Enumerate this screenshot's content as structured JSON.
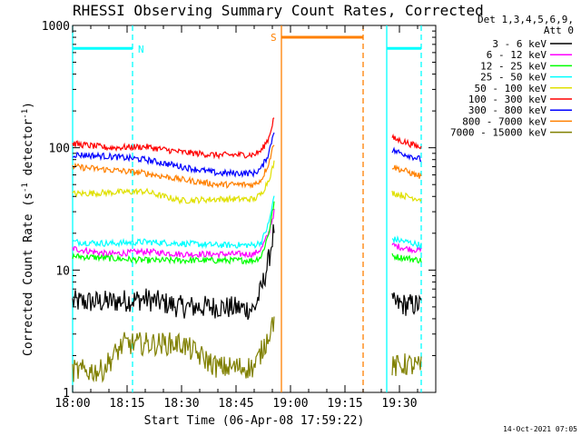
{
  "chart_data": {
    "type": "line",
    "title": "RHESSI Observing Summary Count Rates, Corrected",
    "xlabel": "Start Time (06-Apr-08 17:59:22)",
    "ylabel": "Corrected Count Rate (s",
    "ylabel_sup": "-1",
    "ylabel_tail": " detector",
    "ylabel_tail_sup": "-1",
    "ylabel_close": ")",
    "yscale": "log",
    "ylim": [
      1,
      1000
    ],
    "xlim_minutes": [
      0,
      100
    ],
    "x_ticks": [
      {
        "m": 0,
        "label": "18:00"
      },
      {
        "m": 15,
        "label": "18:15"
      },
      {
        "m": 30,
        "label": "18:30"
      },
      {
        "m": 45,
        "label": "18:45"
      },
      {
        "m": 60,
        "label": "19:00"
      },
      {
        "m": 75,
        "label": "19:15"
      },
      {
        "m": 90,
        "label": "19:30"
      }
    ],
    "y_ticks": [
      {
        "v": 1,
        "label": "1"
      },
      {
        "v": 10,
        "label": "10"
      },
      {
        "v": 100,
        "label": "100"
      },
      {
        "v": 1000,
        "label": "1000"
      }
    ],
    "legend_header": [
      "Det 1,3,4,5,6,9,",
      "Att 0"
    ],
    "legend_placement": "right",
    "series": [
      {
        "name": "3 - 6 keV",
        "color": "#000000",
        "segments": [
          {
            "x": [
              0,
              10,
              20,
              30,
              40,
              50,
              52,
              54,
              55.5
            ],
            "y": [
              5.5,
              5.5,
              5.8,
              5,
              5,
              4.8,
              7,
              12,
              22
            ]
          },
          {
            "x": [
              88,
              92,
              96
            ],
            "y": [
              5.3,
              5.2,
              5.2
            ]
          }
        ]
      },
      {
        "name": "6 - 12 keV",
        "color": "#ff00ff",
        "segments": [
          {
            "x": [
              0,
              10,
              20,
              30,
              40,
              50,
              52,
              54,
              55.5
            ],
            "y": [
              15,
              13.5,
              14.2,
              13.5,
              13.5,
              13.5,
              15,
              20,
              30
            ]
          },
          {
            "x": [
              88,
              92,
              96
            ],
            "y": [
              16,
              15,
              14.5
            ]
          }
        ]
      },
      {
        "name": "12 - 25 keV",
        "color": "#00ff00",
        "segments": [
          {
            "x": [
              0,
              10,
              20,
              30,
              40,
              50,
              52,
              54,
              55.5
            ],
            "y": [
              13,
              12.5,
              12,
              12,
              12,
              12,
              13,
              20,
              36
            ]
          },
          {
            "x": [
              88,
              92,
              96
            ],
            "y": [
              13,
              12.5,
              12
            ]
          }
        ]
      },
      {
        "name": "25 - 50 keV",
        "color": "#00ffff",
        "segments": [
          {
            "x": [
              0,
              10,
              20,
              30,
              40,
              50,
              52,
              54,
              55.5
            ],
            "y": [
              17,
              16.5,
              17,
              16.5,
              16,
              16,
              17,
              24,
              40
            ]
          },
          {
            "x": [
              88,
              92,
              96
            ],
            "y": [
              18,
              17,
              16
            ]
          }
        ]
      },
      {
        "name": "50 - 100 keV",
        "color": "#e0e000",
        "segments": [
          {
            "x": [
              0,
              10,
              20,
              25,
              30,
              40,
              50,
              52,
              54,
              55.5
            ],
            "y": [
              42,
              43,
              44,
              40,
              37,
              38,
              38,
              42,
              55,
              75
            ]
          },
          {
            "x": [
              88,
              92,
              96
            ],
            "y": [
              43,
              40,
              38
            ]
          }
        ]
      },
      {
        "name": "100 - 300 keV",
        "color": "#ff0000",
        "segments": [
          {
            "x": [
              0,
              10,
              20,
              30,
              40,
              50,
              52,
              54,
              55.5
            ],
            "y": [
              108,
              100,
              102,
              92,
              87,
              88,
              95,
              120,
              180
            ]
          },
          {
            "x": [
              88,
              92,
              96
            ],
            "y": [
              120,
              110,
              100
            ]
          }
        ]
      },
      {
        "name": "300 - 800 keV",
        "color": "#0000ff",
        "segments": [
          {
            "x": [
              0,
              10,
              20,
              30,
              40,
              50,
              52,
              54,
              55.5
            ],
            "y": [
              88,
              85,
              80,
              70,
              62,
              62,
              68,
              90,
              140
            ]
          },
          {
            "x": [
              88,
              92,
              96
            ],
            "y": [
              95,
              88,
              80
            ]
          }
        ]
      },
      {
        "name": "800 - 7000 keV",
        "color": "#ff8000",
        "segments": [
          {
            "x": [
              0,
              10,
              20,
              30,
              40,
              50,
              52,
              54,
              55.5
            ],
            "y": [
              70,
              66,
              62,
              55,
              50,
              50,
              55,
              75,
              110
            ]
          },
          {
            "x": [
              88,
              92,
              96
            ],
            "y": [
              70,
              64,
              58
            ]
          }
        ]
      },
      {
        "name": "7000 - 15000 keV",
        "color": "#808000",
        "segments": [
          {
            "x": [
              0,
              8,
              14,
              20,
              30,
              40,
              50,
              53,
              55.5
            ],
            "y": [
              1.5,
              1.5,
              2.5,
              2.5,
              2.5,
              1.6,
              1.6,
              2.5,
              4
            ]
          },
          {
            "x": [
              88,
              92,
              96
            ],
            "y": [
              1.6,
              1.7,
              1.6
            ]
          }
        ]
      }
    ],
    "annotations": {
      "night": {
        "label": "N",
        "color": "#00ffff",
        "bars": [
          {
            "x": [
              0,
              16.5
            ],
            "y": 650
          },
          {
            "x": [
              86.5,
              96
            ],
            "y": 650
          }
        ],
        "solid_lines": [
          0,
          86.5
        ],
        "dashed_lines": [
          16.5,
          96
        ]
      },
      "saa": {
        "label": "S",
        "color": "#ff8000",
        "bars": [
          {
            "x": [
              57.5,
              80
            ],
            "y": 800
          }
        ],
        "solid_lines": [
          57.5
        ],
        "dashed_lines": [
          80
        ]
      }
    },
    "timestamp": "14-Oct-2021 07:05"
  }
}
